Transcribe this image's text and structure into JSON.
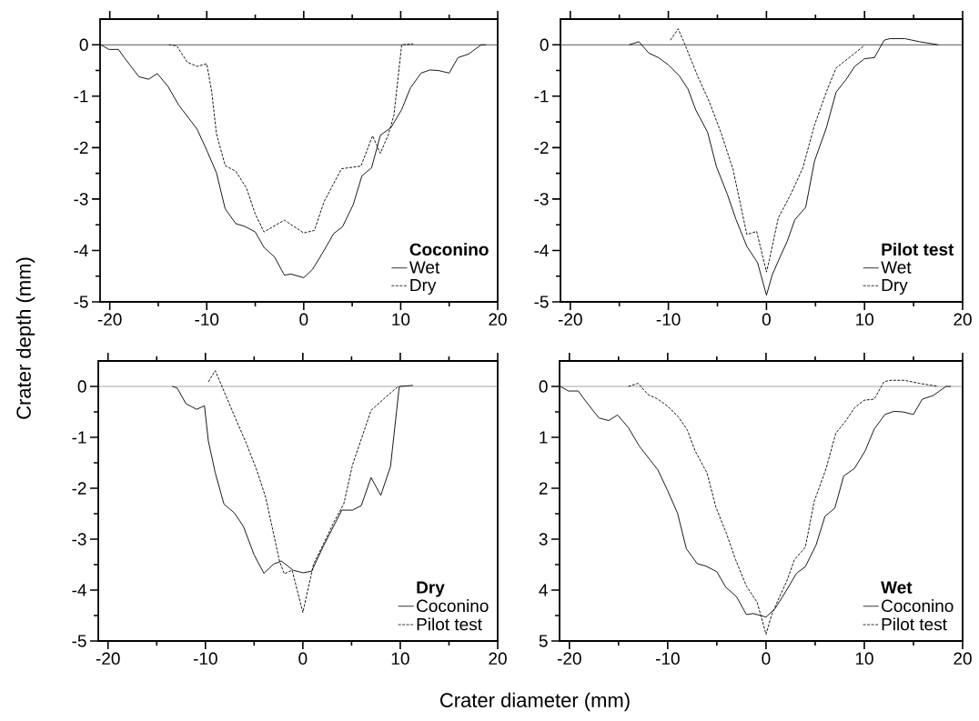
{
  "chart_data": [
    {
      "type": "line",
      "ylabel": "Crater depth (mm)",
      "legend_title": "Coconino",
      "legend": "bottom right",
      "xlim": [
        -21,
        20
      ],
      "ylim": [
        -5,
        0.5
      ],
      "xticks": [
        -20,
        {
          "value": -15,
          "label": null
        },
        -10,
        {
          "value": -5,
          "label": null
        },
        0,
        {
          "value": 5,
          "label": null
        },
        10,
        {
          "value": 15,
          "label": null
        },
        20
      ],
      "yticks": [
        0,
        {
          "value": -0.5,
          "label": null
        },
        -1,
        {
          "value": -1.5,
          "label": null
        },
        -2,
        {
          "value": -2.5,
          "label": null
        },
        -3,
        {
          "value": -3.5,
          "label": null
        },
        -4,
        {
          "value": -4.5,
          "label": null
        },
        -5
      ],
      "ref_lines": [
        {
          "axis": "y",
          "value": 0,
          "color": "#000000"
        }
      ],
      "series": [
        {
          "name": "Wet",
          "color": "#000000",
          "line_style": "solid",
          "x": [
            -20.9,
            -20.1,
            -19.1,
            -18.5,
            -17,
            -16,
            -15.1,
            -14,
            -12.9,
            -11,
            -10,
            -9,
            -8.1,
            -7,
            -6.1,
            -5,
            -4.1,
            -3,
            -2,
            -1.3,
            0,
            0.9,
            2,
            3.1,
            4,
            5.1,
            6,
            7,
            7.9,
            9,
            10.1,
            11,
            12.1,
            13,
            13.9,
            15,
            15.9,
            17,
            18.3,
            18.8
          ],
          "values": [
            0,
            -0.09,
            -0.09,
            -0.25,
            -0.62,
            -0.67,
            -0.56,
            -0.81,
            -1.17,
            -1.64,
            -2.05,
            -2.49,
            -3.19,
            -3.48,
            -3.53,
            -3.64,
            -3.94,
            -4.13,
            -4.48,
            -4.46,
            -4.53,
            -4.37,
            -4.03,
            -3.67,
            -3.54,
            -3.11,
            -2.55,
            -2.39,
            -1.76,
            -1.61,
            -1.26,
            -0.84,
            -0.55,
            -0.49,
            -0.5,
            -0.55,
            -0.25,
            -0.18,
            0,
            0
          ]
        },
        {
          "name": "Dry",
          "color": "#000000",
          "line_style": "dashed",
          "x": [
            -13.9,
            -13.1,
            -12,
            -11,
            -10,
            -9.5,
            -9,
            -8.1,
            -7,
            -5.9,
            -5,
            -4.1,
            -2,
            0,
            1.1,
            2.1,
            3.9,
            5.9,
            7.1,
            7.9,
            8.7,
            9.3,
            10.1,
            11.3
          ],
          "values": [
            0,
            -0.02,
            -0.34,
            -0.42,
            -0.37,
            -0.9,
            -1.73,
            -2.35,
            -2.46,
            -2.79,
            -3.29,
            -3.64,
            -3.41,
            -3.66,
            -3.61,
            -3.05,
            -2.41,
            -2.36,
            -1.77,
            -2.11,
            -1.76,
            -1.37,
            0,
            0.02
          ]
        }
      ]
    },
    {
      "type": "line",
      "legend_title": "Pilot test",
      "legend": "bottom right",
      "xlim": [
        -21,
        20
      ],
      "ylim": [
        -5,
        0.5
      ],
      "xticks": [
        -20,
        {
          "value": -15,
          "label": null
        },
        -10,
        {
          "value": -5,
          "label": null
        },
        0,
        {
          "value": 5,
          "label": null
        },
        10,
        {
          "value": 15,
          "label": null
        },
        20
      ],
      "yticks": [
        0,
        {
          "value": -0.5,
          "label": null
        },
        -1,
        {
          "value": -1.5,
          "label": null
        },
        -2,
        {
          "value": -2.5,
          "label": null
        },
        -3,
        {
          "value": -3.5,
          "label": null
        },
        -4,
        {
          "value": -4.5,
          "label": null
        },
        -5
      ],
      "ref_lines": [
        {
          "axis": "y",
          "value": 0,
          "color": "#000000"
        }
      ],
      "series": [
        {
          "name": "Wet",
          "color": "#000000",
          "line_style": "solid",
          "x": [
            -14,
            -13,
            -12,
            -11,
            -10,
            -8.9,
            -8,
            -7.2,
            -6,
            -5.1,
            -4,
            -3.1,
            -2,
            -0.9,
            0,
            0.6,
            1.4,
            2.1,
            2.9,
            4,
            4.9,
            6.1,
            7.1,
            8.1,
            9,
            10,
            11,
            12,
            12.6,
            14.1,
            15.6,
            17.5
          ],
          "values": [
            0,
            0.06,
            -0.16,
            -0.25,
            -0.39,
            -0.6,
            -0.86,
            -1.27,
            -1.7,
            -2.37,
            -2.9,
            -3.4,
            -3.92,
            -4.24,
            -4.87,
            -4.47,
            -4.12,
            -3.83,
            -3.4,
            -3.16,
            -2.26,
            -1.62,
            -0.92,
            -0.68,
            -0.42,
            -0.27,
            -0.25,
            0.09,
            0.12,
            0.12,
            0.06,
            0
          ]
        },
        {
          "name": "Dry",
          "color": "#000000",
          "line_style": "dashed",
          "x": [
            -9.8,
            -9,
            -8.3,
            -7.1,
            -5.8,
            -4.6,
            -3.4,
            -2,
            -1,
            0,
            0.3,
            1.2,
            2.5,
            3.7,
            4.9,
            6.1,
            7.1,
            8.3,
            10
          ],
          "values": [
            0.09,
            0.31,
            0,
            -0.57,
            -1.12,
            -1.73,
            -2.43,
            -3.69,
            -3.63,
            -4.42,
            -4.18,
            -3.37,
            -2.9,
            -2.4,
            -1.56,
            -0.92,
            -0.45,
            -0.27,
            -0.01
          ]
        }
      ]
    },
    {
      "type": "line",
      "xlabel": "Crater diameter (mm)",
      "legend_title": "Dry",
      "legend": "bottom right",
      "xlim": [
        -21,
        20
      ],
      "ylim": [
        -5,
        0.5
      ],
      "xticks": [
        -20,
        {
          "value": -15,
          "label": null
        },
        -10,
        {
          "value": -5,
          "label": null
        },
        0,
        {
          "value": 5,
          "label": null
        },
        10,
        {
          "value": 15,
          "label": null
        },
        20
      ],
      "yticks": [
        0,
        {
          "value": -0.5,
          "label": null
        },
        -1,
        {
          "value": -1.5,
          "label": null
        },
        -2,
        {
          "value": -2.5,
          "label": null
        },
        -3,
        {
          "value": -3.5,
          "label": null
        },
        -4,
        {
          "value": -4.5,
          "label": null
        },
        -5
      ],
      "ref_lines": [
        {
          "axis": "y",
          "value": 0,
          "color": "#000000"
        }
      ],
      "series": [
        {
          "name": "Coconino",
          "color": "#000000",
          "line_style": "solid",
          "x": [
            -13.4,
            -12.9,
            -12,
            -10.9,
            -10.1,
            -9.7,
            -9,
            -8.1,
            -7,
            -6.1,
            -5,
            -4,
            -3,
            -2.2,
            -1,
            0,
            0.9,
            2.1,
            4,
            5.1,
            6,
            7,
            8,
            9,
            9.9,
            11.3
          ],
          "values": [
            0,
            -0.03,
            -0.34,
            -0.45,
            -0.38,
            -1.07,
            -1.69,
            -2.31,
            -2.49,
            -2.75,
            -3.31,
            -3.67,
            -3.49,
            -3.43,
            -3.61,
            -3.66,
            -3.63,
            -3.14,
            -2.43,
            -2.43,
            -2.34,
            -1.79,
            -2.14,
            -1.57,
            0,
            0.02
          ]
        },
        {
          "name": "Pilot test",
          "color": "#000000",
          "line_style": "dashed",
          "x": [
            -9.7,
            -9,
            -8.3,
            -7,
            -5.8,
            -4.7,
            -3.8,
            -2.4,
            -1.9,
            -1.1,
            0,
            1.1,
            2,
            3.2,
            4.2,
            5.1,
            7,
            9.1,
            9.8
          ],
          "values": [
            0.09,
            0.31,
            0,
            -0.59,
            -1.12,
            -1.66,
            -2.19,
            -3.43,
            -3.68,
            -3.61,
            -4.44,
            -3.49,
            -3.14,
            -2.66,
            -2.31,
            -1.54,
            -0.47,
            -0.11,
            0
          ]
        }
      ]
    },
    {
      "type": "line",
      "legend_title": "Wet",
      "legend": "bottom right",
      "xlim": [
        -21,
        20
      ],
      "ylim": [
        5,
        -0.5
      ],
      "xticks": [
        -20,
        {
          "value": -15,
          "label": null
        },
        -10,
        {
          "value": -5,
          "label": null
        },
        0,
        {
          "value": 5,
          "label": null
        },
        10,
        {
          "value": 15,
          "label": null
        },
        20
      ],
      "yticks": [
        0,
        {
          "value": 0.5,
          "label": null
        },
        1,
        {
          "value": 1.5,
          "label": null
        },
        2,
        {
          "value": 2.5,
          "label": null
        },
        3,
        {
          "value": 3.5,
          "label": null
        },
        4,
        {
          "value": 4.5,
          "label": null
        },
        5
      ],
      "ref_lines": [
        {
          "axis": "y",
          "value": 0,
          "color": "#000000"
        }
      ],
      "series": [
        {
          "name": "Coconino",
          "color": "#000000",
          "line_style": "solid",
          "x": [
            -20.9,
            -20.1,
            -19.1,
            -18.5,
            -17,
            -16,
            -15.1,
            -14,
            -12.9,
            -11,
            -10,
            -9,
            -8.1,
            -7,
            -6.1,
            -5,
            -4.1,
            -3,
            -2,
            -1.3,
            0,
            0.9,
            2,
            3.1,
            4,
            5.1,
            6,
            7,
            7.9,
            9,
            10.1,
            11,
            12.1,
            13,
            13.9,
            15,
            15.9,
            17,
            18.3,
            18.8
          ],
          "values": [
            0,
            0.09,
            0.09,
            0.25,
            0.62,
            0.67,
            0.56,
            0.81,
            1.17,
            1.64,
            2.05,
            2.49,
            3.19,
            3.48,
            3.53,
            3.64,
            3.94,
            4.13,
            4.48,
            4.46,
            4.53,
            4.37,
            4.03,
            3.67,
            3.54,
            3.11,
            2.55,
            2.39,
            1.76,
            1.61,
            1.26,
            0.84,
            0.55,
            0.49,
            0.5,
            0.55,
            0.25,
            0.18,
            0,
            0
          ]
        },
        {
          "name": "Pilot test",
          "color": "#000000",
          "line_style": "dashed",
          "x": [
            -14,
            -13,
            -12,
            -11,
            -10,
            -8.9,
            -8,
            -7.2,
            -6,
            -5.1,
            -4,
            -3.1,
            -2,
            -0.9,
            0,
            0.6,
            1.4,
            2.1,
            2.9,
            4,
            4.9,
            6.1,
            7.1,
            8.1,
            9,
            10,
            11,
            12,
            12.6,
            14.1,
            15.6,
            17.5
          ],
          "values": [
            0,
            -0.06,
            0.16,
            0.25,
            0.39,
            0.6,
            0.86,
            1.27,
            1.7,
            2.37,
            2.9,
            3.4,
            3.92,
            4.24,
            4.87,
            4.47,
            4.12,
            3.83,
            3.4,
            3.16,
            2.26,
            1.62,
            0.92,
            0.68,
            0.42,
            0.27,
            0.25,
            -0.09,
            -0.12,
            -0.12,
            -0.06,
            0
          ]
        }
      ]
    }
  ]
}
